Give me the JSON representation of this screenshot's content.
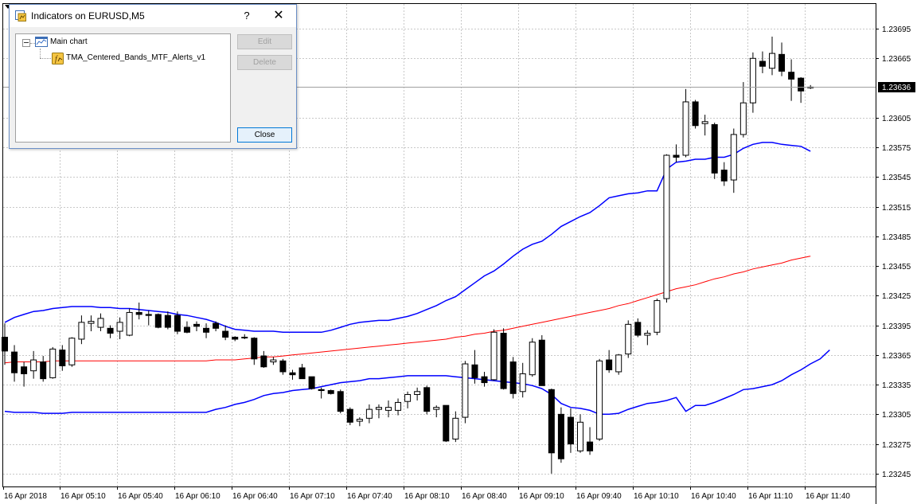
{
  "window": {
    "title": "Indicators on EURUSD,M5",
    "help_glyph": "?",
    "close_glyph": "✕"
  },
  "tree": {
    "root_label": "Main chart",
    "indicator_label": "TMA_Centered_Bands_MTF_Alerts_v1"
  },
  "buttons": {
    "edit": "Edit",
    "delete": "Delete",
    "close": "Close"
  },
  "chart_data": {
    "type": "candlestick",
    "symbol": "EURUSD",
    "timeframe": "M5",
    "y_range": [
      1.23232,
      1.2372
    ],
    "y_ticks": [
      "1.23695",
      "1.23665",
      "1.23636",
      "1.23605",
      "1.23575",
      "1.23545",
      "1.23515",
      "1.23485",
      "1.23455",
      "1.23425",
      "1.23395",
      "1.23365",
      "1.23335",
      "1.23305",
      "1.23275",
      "1.23245"
    ],
    "current_price": "1.23636",
    "x_tick_labels": [
      "16 Apr 2018",
      "16 Apr 05:10",
      "16 Apr 05:40",
      "16 Apr 06:10",
      "16 Apr 06:40",
      "16 Apr 07:10",
      "16 Apr 07:40",
      "16 Apr 08:10",
      "16 Apr 08:40",
      "16 Apr 09:10",
      "16 Apr 09:40",
      "16 Apr 10:10",
      "16 Apr 10:40",
      "16 Apr 11:10",
      "16 Apr 11:40"
    ],
    "candles": [
      {
        "o": 1.23383,
        "h": 1.23397,
        "l": 1.23355,
        "c": 1.23369
      },
      {
        "o": 1.23368,
        "h": 1.23375,
        "l": 1.23338,
        "c": 1.23347
      },
      {
        "o": 1.23353,
        "h": 1.23358,
        "l": 1.23333,
        "c": 1.23346
      },
      {
        "o": 1.23349,
        "h": 1.23369,
        "l": 1.23341,
        "c": 1.2336
      },
      {
        "o": 1.23358,
        "h": 1.23364,
        "l": 1.23338,
        "c": 1.23341
      },
      {
        "o": 1.23342,
        "h": 1.23373,
        "l": 1.23341,
        "c": 1.23371
      },
      {
        "o": 1.2337,
        "h": 1.23375,
        "l": 1.23349,
        "c": 1.23354
      },
      {
        "o": 1.23355,
        "h": 1.23383,
        "l": 1.23353,
        "c": 1.23382
      },
      {
        "o": 1.23381,
        "h": 1.23405,
        "l": 1.23376,
        "c": 1.23398
      },
      {
        "o": 1.23397,
        "h": 1.23405,
        "l": 1.23389,
        "c": 1.23399
      },
      {
        "o": 1.23393,
        "h": 1.23407,
        "l": 1.23389,
        "c": 1.23402
      },
      {
        "o": 1.23392,
        "h": 1.23395,
        "l": 1.23382,
        "c": 1.23387
      },
      {
        "o": 1.23389,
        "h": 1.23403,
        "l": 1.23381,
        "c": 1.23398
      },
      {
        "o": 1.23385,
        "h": 1.23412,
        "l": 1.23384,
        "c": 1.23408
      },
      {
        "o": 1.23408,
        "h": 1.23418,
        "l": 1.23401,
        "c": 1.23406
      },
      {
        "o": 1.23406,
        "h": 1.2341,
        "l": 1.23395,
        "c": 1.23405
      },
      {
        "o": 1.23406,
        "h": 1.23407,
        "l": 1.23392,
        "c": 1.23393
      },
      {
        "o": 1.23405,
        "h": 1.23409,
        "l": 1.23391,
        "c": 1.23393
      },
      {
        "o": 1.23405,
        "h": 1.23409,
        "l": 1.23386,
        "c": 1.23389
      },
      {
        "o": 1.23393,
        "h": 1.23399,
        "l": 1.23387,
        "c": 1.23388
      },
      {
        "o": 1.23396,
        "h": 1.23399,
        "l": 1.23389,
        "c": 1.23394
      },
      {
        "o": 1.23392,
        "h": 1.23397,
        "l": 1.23382,
        "c": 1.23388
      },
      {
        "o": 1.23397,
        "h": 1.23399,
        "l": 1.23389,
        "c": 1.23392
      },
      {
        "o": 1.23389,
        "h": 1.23395,
        "l": 1.2338,
        "c": 1.23383
      },
      {
        "o": 1.23383,
        "h": 1.23384,
        "l": 1.23379,
        "c": 1.23381
      },
      {
        "o": 1.23383,
        "h": 1.23386,
        "l": 1.23381,
        "c": 1.23383
      },
      {
        "o": 1.23382,
        "h": 1.23383,
        "l": 1.23355,
        "c": 1.23361
      },
      {
        "o": 1.23364,
        "h": 1.23369,
        "l": 1.23352,
        "c": 1.23353
      },
      {
        "o": 1.23358,
        "h": 1.23363,
        "l": 1.23355,
        "c": 1.2336
      },
      {
        "o": 1.23359,
        "h": 1.23361,
        "l": 1.23345,
        "c": 1.23348
      },
      {
        "o": 1.23347,
        "h": 1.2335,
        "l": 1.2334,
        "c": 1.23345
      },
      {
        "o": 1.23352,
        "h": 1.23356,
        "l": 1.23341,
        "c": 1.23341
      },
      {
        "o": 1.23343,
        "h": 1.23343,
        "l": 1.2333,
        "c": 1.23331
      },
      {
        "o": 1.2333,
        "h": 1.23332,
        "l": 1.23321,
        "c": 1.23329
      },
      {
        "o": 1.23329,
        "h": 1.2333,
        "l": 1.23325,
        "c": 1.23326
      },
      {
        "o": 1.23328,
        "h": 1.2333,
        "l": 1.23306,
        "c": 1.23308
      },
      {
        "o": 1.2331,
        "h": 1.23312,
        "l": 1.23294,
        "c": 1.23297
      },
      {
        "o": 1.23298,
        "h": 1.23302,
        "l": 1.23293,
        "c": 1.233
      },
      {
        "o": 1.23301,
        "h": 1.23315,
        "l": 1.23296,
        "c": 1.2331
      },
      {
        "o": 1.2331,
        "h": 1.23315,
        "l": 1.23301,
        "c": 1.23312
      },
      {
        "o": 1.23309,
        "h": 1.23319,
        "l": 1.23302,
        "c": 1.23312
      },
      {
        "o": 1.23309,
        "h": 1.23321,
        "l": 1.23304,
        "c": 1.23317
      },
      {
        "o": 1.23318,
        "h": 1.23328,
        "l": 1.23311,
        "c": 1.23325
      },
      {
        "o": 1.23325,
        "h": 1.23332,
        "l": 1.23319,
        "c": 1.23328
      },
      {
        "o": 1.23332,
        "h": 1.23334,
        "l": 1.23305,
        "c": 1.23308
      },
      {
        "o": 1.2331,
        "h": 1.23314,
        "l": 1.23302,
        "c": 1.23312
      },
      {
        "o": 1.23314,
        "h": 1.23314,
        "l": 1.23277,
        "c": 1.23278
      },
      {
        "o": 1.2328,
        "h": 1.23308,
        "l": 1.23277,
        "c": 1.23301
      },
      {
        "o": 1.23302,
        "h": 1.23359,
        "l": 1.23296,
        "c": 1.23356
      },
      {
        "o": 1.23355,
        "h": 1.2337,
        "l": 1.23336,
        "c": 1.23342
      },
      {
        "o": 1.23343,
        "h": 1.23348,
        "l": 1.23333,
        "c": 1.23337
      },
      {
        "o": 1.2334,
        "h": 1.23391,
        "l": 1.23339,
        "c": 1.23388
      },
      {
        "o": 1.23387,
        "h": 1.23392,
        "l": 1.2333,
        "c": 1.23331
      },
      {
        "o": 1.23358,
        "h": 1.23363,
        "l": 1.23321,
        "c": 1.23326
      },
      {
        "o": 1.23328,
        "h": 1.23357,
        "l": 1.23322,
        "c": 1.23346
      },
      {
        "o": 1.23345,
        "h": 1.23382,
        "l": 1.23343,
        "c": 1.23378
      },
      {
        "o": 1.2338,
        "h": 1.23385,
        "l": 1.23334,
        "c": 1.23334
      },
      {
        "o": 1.2333,
        "h": 1.23331,
        "l": 1.23245,
        "c": 1.23266
      },
      {
        "o": 1.23305,
        "h": 1.23312,
        "l": 1.23256,
        "c": 1.2326
      },
      {
        "o": 1.23302,
        "h": 1.23311,
        "l": 1.23266,
        "c": 1.23275
      },
      {
        "o": 1.23268,
        "h": 1.23305,
        "l": 1.23266,
        "c": 1.23297
      },
      {
        "o": 1.23277,
        "h": 1.23292,
        "l": 1.23264,
        "c": 1.23268
      },
      {
        "o": 1.2328,
        "h": 1.23361,
        "l": 1.23278,
        "c": 1.23359
      },
      {
        "o": 1.2336,
        "h": 1.2337,
        "l": 1.23347,
        "c": 1.2335
      },
      {
        "o": 1.23348,
        "h": 1.23366,
        "l": 1.23345,
        "c": 1.23365
      },
      {
        "o": 1.23366,
        "h": 1.234,
        "l": 1.23362,
        "c": 1.23396
      },
      {
        "o": 1.23398,
        "h": 1.23402,
        "l": 1.23383,
        "c": 1.23385
      },
      {
        "o": 1.23385,
        "h": 1.2339,
        "l": 1.23375,
        "c": 1.23387
      },
      {
        "o": 1.23388,
        "h": 1.23422,
        "l": 1.23385,
        "c": 1.2342
      },
      {
        "o": 1.23422,
        "h": 1.23568,
        "l": 1.23418,
        "c": 1.23567
      },
      {
        "o": 1.23567,
        "h": 1.23578,
        "l": 1.2356,
        "c": 1.23565
      },
      {
        "o": 1.23567,
        "h": 1.23634,
        "l": 1.23565,
        "c": 1.23621
      },
      {
        "o": 1.23621,
        "h": 1.23623,
        "l": 1.23594,
        "c": 1.23597
      },
      {
        "o": 1.23599,
        "h": 1.23608,
        "l": 1.23587,
        "c": 1.23601
      },
      {
        "o": 1.23598,
        "h": 1.236,
        "l": 1.23543,
        "c": 1.23549
      },
      {
        "o": 1.23552,
        "h": 1.2356,
        "l": 1.23536,
        "c": 1.23541
      },
      {
        "o": 1.23542,
        "h": 1.23594,
        "l": 1.23529,
        "c": 1.23588
      },
      {
        "o": 1.23588,
        "h": 1.23641,
        "l": 1.23585,
        "c": 1.2362
      },
      {
        "o": 1.2362,
        "h": 1.23671,
        "l": 1.2361,
        "c": 1.23665
      },
      {
        "o": 1.23662,
        "h": 1.23672,
        "l": 1.2365,
        "c": 1.23657
      },
      {
        "o": 1.23655,
        "h": 1.23687,
        "l": 1.23648,
        "c": 1.2367
      },
      {
        "o": 1.23669,
        "h": 1.23681,
        "l": 1.23647,
        "c": 1.23652
      },
      {
        "o": 1.23651,
        "h": 1.23664,
        "l": 1.23622,
        "c": 1.23644
      },
      {
        "o": 1.23645,
        "h": 1.23646,
        "l": 1.2362,
        "c": 1.23632
      },
      {
        "o": 1.23636,
        "h": 1.23638,
        "l": 1.23634,
        "c": 1.23636
      }
    ],
    "series": [
      {
        "type": "line",
        "color": "#0000ff",
        "values": [
          1.23398,
          1.23403,
          1.23406,
          1.23409,
          1.2341,
          1.23412,
          1.23413,
          1.23414,
          1.23414,
          1.23414,
          1.23413,
          1.23413,
          1.23412,
          1.23412,
          1.23411,
          1.2341,
          1.23409,
          1.23408,
          1.23406,
          1.23405,
          1.23403,
          1.23401,
          1.23398,
          1.23394,
          1.23391,
          1.2339,
          1.23389,
          1.23389,
          1.23389,
          1.23388,
          1.23388,
          1.23388,
          1.23388,
          1.23388,
          1.2339,
          1.23393,
          1.23396,
          1.23398,
          1.23399,
          1.234,
          1.234,
          1.23402,
          1.23404,
          1.23407,
          1.23411,
          1.23415,
          1.2342,
          1.23424,
          1.23431,
          1.23438,
          1.23445,
          1.2345,
          1.23457,
          1.23465,
          1.23472,
          1.23477,
          1.2348,
          1.23487,
          1.23495,
          1.235,
          1.23505,
          1.23509,
          1.23516,
          1.23524,
          1.23526,
          1.23528,
          1.23529,
          1.23531,
          1.23531,
          1.23553,
          1.2356,
          1.23561,
          1.23563,
          1.23563,
          1.23565,
          1.23565,
          1.23568,
          1.23574,
          1.23578,
          1.2358,
          1.2358,
          1.23578,
          1.23577,
          1.23576,
          1.23571
        ]
      },
      {
        "type": "line",
        "color": "#ff0000",
        "values": [
          1.23357,
          1.23358,
          1.23358,
          1.23358,
          1.23358,
          1.23359,
          1.23359,
          1.23359,
          1.23359,
          1.23359,
          1.23359,
          1.23359,
          1.23359,
          1.23359,
          1.23359,
          1.23359,
          1.23359,
          1.23359,
          1.23359,
          1.23359,
          1.23359,
          1.23359,
          1.2336,
          1.2336,
          1.2336,
          1.23361,
          1.23362,
          1.23363,
          1.23363,
          1.23364,
          1.23365,
          1.23366,
          1.23367,
          1.23368,
          1.23369,
          1.2337,
          1.23371,
          1.23372,
          1.23373,
          1.23374,
          1.23375,
          1.23376,
          1.23377,
          1.23378,
          1.23379,
          1.2338,
          1.23381,
          1.23383,
          1.23384,
          1.23386,
          1.23387,
          1.23389,
          1.2339,
          1.23392,
          1.23394,
          1.23396,
          1.23398,
          1.234,
          1.23402,
          1.23404,
          1.23406,
          1.23408,
          1.2341,
          1.23412,
          1.23415,
          1.23417,
          1.2342,
          1.23423,
          1.23426,
          1.23429,
          1.23432,
          1.23434,
          1.23436,
          1.23439,
          1.23442,
          1.23444,
          1.23447,
          1.23449,
          1.23452,
          1.23454,
          1.23456,
          1.23458,
          1.23461,
          1.23463,
          1.23465
        ]
      },
      {
        "type": "line",
        "color": "#0000ff",
        "values": [
          1.23308,
          1.23307,
          1.23307,
          1.23307,
          1.23306,
          1.23306,
          1.23306,
          1.23307,
          1.23307,
          1.23307,
          1.23307,
          1.23307,
          1.23307,
          1.23307,
          1.23307,
          1.23307,
          1.23307,
          1.23307,
          1.23307,
          1.23307,
          1.23307,
          1.23307,
          1.2331,
          1.23312,
          1.23315,
          1.23317,
          1.2332,
          1.23324,
          1.23326,
          1.23327,
          1.23329,
          1.2333,
          1.23331,
          1.23333,
          1.23335,
          1.23337,
          1.23338,
          1.23339,
          1.23341,
          1.23341,
          1.23342,
          1.23343,
          1.23344,
          1.23344,
          1.23344,
          1.23344,
          1.23344,
          1.23343,
          1.23342,
          1.23341,
          1.2334,
          1.23339,
          1.23338,
          1.23337,
          1.23336,
          1.23334,
          1.23331,
          1.23325,
          1.23316,
          1.23312,
          1.23311,
          1.23309,
          1.23305,
          1.23305,
          1.23306,
          1.2331,
          1.23313,
          1.23316,
          1.23317,
          1.23319,
          1.23322,
          1.23308,
          1.23314,
          1.23314,
          1.23317,
          1.23321,
          1.23325,
          1.2333,
          1.23331,
          1.23333,
          1.23335,
          1.23339,
          1.23345,
          1.2335,
          1.23356,
          1.23361,
          1.2337
        ]
      }
    ]
  }
}
